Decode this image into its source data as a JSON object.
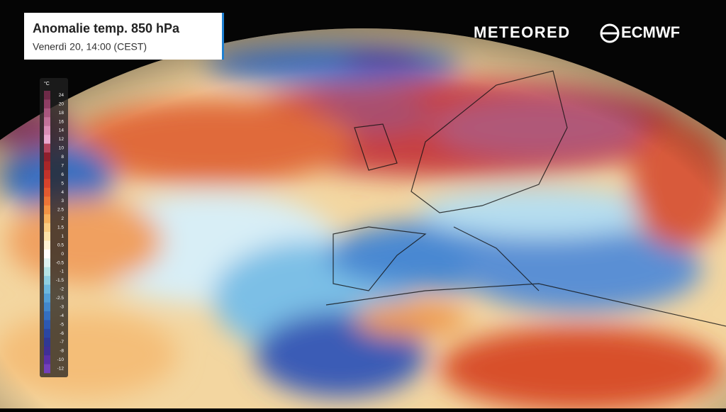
{
  "header": {
    "title": "Anomalie temp. 850 hPa",
    "subtitle": "Venerdì 20, 14:00 (CEST)"
  },
  "logos": {
    "left": "METEORED",
    "right": "ECMWF"
  },
  "legend": {
    "unit": "°C",
    "ticks": [
      24,
      20,
      18,
      16,
      14,
      12,
      10,
      8,
      7,
      6,
      5,
      4,
      3,
      2.5,
      2,
      1.5,
      1,
      0.5,
      0,
      -0.5,
      -1,
      -1.5,
      -2,
      -2.5,
      -3,
      -4,
      -5,
      -6,
      -7,
      -8,
      -10,
      -12
    ],
    "colors": [
      "#6e2a48",
      "#8e3e64",
      "#a9577f",
      "#c2729a",
      "#d98db6",
      "#eaa8cf",
      "#b2445e",
      "#8e1f2c",
      "#a82628",
      "#c2322a",
      "#d7432c",
      "#e45a2f",
      "#ec7537",
      "#f29445",
      "#f6b25e",
      "#f9cd82",
      "#fbe2a8",
      "#fdf2d4",
      "#ffffff",
      "#dff3f2",
      "#b6e4e6",
      "#8fd0e3",
      "#6cb8df",
      "#539fd7",
      "#4287cc",
      "#346fc0",
      "#2c58b2",
      "#2a46a2",
      "#2f3895",
      "#3f2f97",
      "#5a30a8",
      "#7440bb"
    ]
  }
}
